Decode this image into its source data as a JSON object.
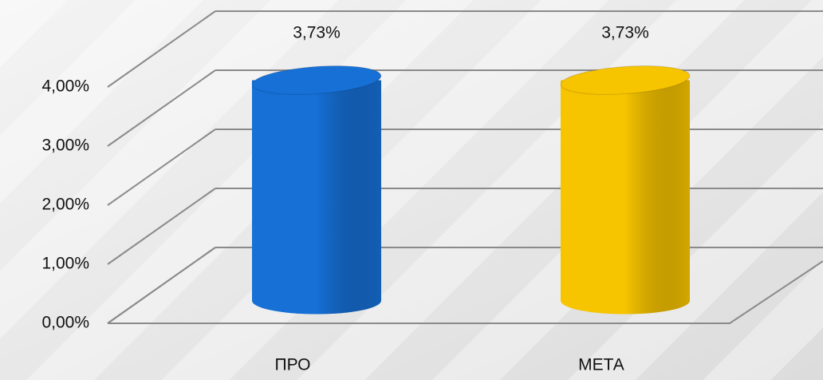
{
  "chart_data": {
    "type": "bar3d",
    "categories": [
      "ПРО",
      "МЕТА"
    ],
    "values": [
      3.73,
      3.73
    ],
    "value_labels": [
      "3,73%",
      "3,73%"
    ],
    "colors": [
      "#1670d6",
      "#f7c400"
    ],
    "ylim": [
      0,
      4
    ],
    "yticks": [
      {
        "value": 0,
        "label": "0,00%"
      },
      {
        "value": 1,
        "label": "1,00%"
      },
      {
        "value": 2,
        "label": "2,00%"
      },
      {
        "value": 3,
        "label": "3,00%"
      },
      {
        "value": 4,
        "label": "4,00%"
      }
    ],
    "grid": true
  }
}
